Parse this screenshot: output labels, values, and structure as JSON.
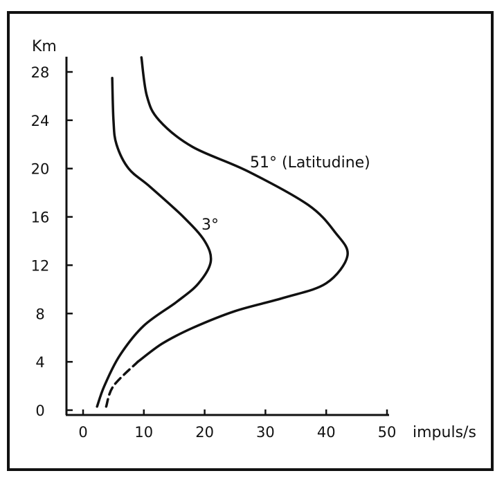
{
  "chart_data": {
    "type": "line",
    "title": "",
    "xlabel": "impuls/s",
    "ylabel": "Km",
    "xlim": [
      0,
      50
    ],
    "ylim": [
      0,
      28
    ],
    "x_ticks": [
      "0",
      "10",
      "20",
      "30",
      "40",
      "50"
    ],
    "y_ticks": [
      "0",
      "4",
      "8",
      "12",
      "16",
      "20",
      "24",
      "28"
    ],
    "grid": false,
    "legend": "none",
    "annotations": [
      {
        "text": "51° (Latitudine)",
        "series": "51°"
      },
      {
        "text": "3°",
        "series": "3°"
      }
    ],
    "series": [
      {
        "name": "3°",
        "color": "#111111",
        "points": [
          {
            "x": 2.3,
            "y": 0.3
          },
          {
            "x": 3.5,
            "y": 2
          },
          {
            "x": 6,
            "y": 4.5
          },
          {
            "x": 10,
            "y": 7
          },
          {
            "x": 15.5,
            "y": 9
          },
          {
            "x": 19,
            "y": 10.5
          },
          {
            "x": 21,
            "y": 12.3
          },
          {
            "x": 20,
            "y": 14
          },
          {
            "x": 16.5,
            "y": 16
          },
          {
            "x": 11,
            "y": 18.5
          },
          {
            "x": 7.5,
            "y": 20
          },
          {
            "x": 5.5,
            "y": 22
          },
          {
            "x": 5,
            "y": 24
          },
          {
            "x": 4.8,
            "y": 27.5
          }
        ]
      },
      {
        "name": "51°",
        "color": "#111111",
        "dashed_below_km": 4,
        "points": [
          {
            "x": 3.8,
            "y": 0.3
          },
          {
            "x": 5,
            "y": 2
          },
          {
            "x": 9,
            "y": 4
          },
          {
            "x": 13,
            "y": 5.5
          },
          {
            "x": 18,
            "y": 6.8
          },
          {
            "x": 25,
            "y": 8.2
          },
          {
            "x": 33,
            "y": 9.3
          },
          {
            "x": 40,
            "y": 10.5
          },
          {
            "x": 43.5,
            "y": 12.8
          },
          {
            "x": 41.5,
            "y": 14.7
          },
          {
            "x": 37,
            "y": 17
          },
          {
            "x": 27,
            "y": 19.8
          },
          {
            "x": 18,
            "y": 21.8
          },
          {
            "x": 12.5,
            "y": 24
          },
          {
            "x": 10.5,
            "y": 26
          },
          {
            "x": 9.6,
            "y": 29.2
          }
        ]
      }
    ]
  }
}
